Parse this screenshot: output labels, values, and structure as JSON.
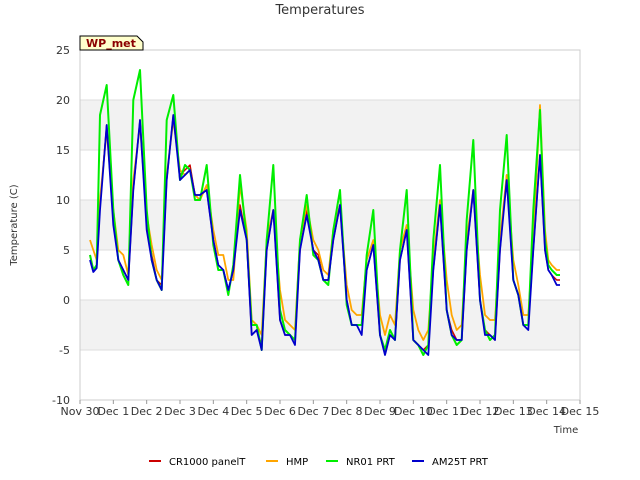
{
  "chart_data": {
    "type": "line",
    "title": "Temperatures",
    "xlabel": "Time",
    "ylabel": "Temperature (C)",
    "badge": "WP_met",
    "ylim": [
      -10,
      25
    ],
    "xlim": [
      0,
      15
    ],
    "yticks": [
      -10,
      -5,
      0,
      5,
      10,
      15,
      20,
      25
    ],
    "xticks": [
      {
        "pos": 0,
        "label": "Nov 30"
      },
      {
        "pos": 1,
        "label": "Dec 1"
      },
      {
        "pos": 2,
        "label": "Dec 2"
      },
      {
        "pos": 3,
        "label": "Dec 3"
      },
      {
        "pos": 4,
        "label": "Dec 4"
      },
      {
        "pos": 5,
        "label": "Dec 5"
      },
      {
        "pos": 6,
        "label": "Dec 6"
      },
      {
        "pos": 7,
        "label": "Dec 7"
      },
      {
        "pos": 8,
        "label": "Dec 8"
      },
      {
        "pos": 9,
        "label": "Dec 9"
      },
      {
        "pos": 10,
        "label": "Dec 10"
      },
      {
        "pos": 11,
        "label": "Dec 11"
      },
      {
        "pos": 12,
        "label": "Dec 12"
      },
      {
        "pos": 13,
        "label": "Dec 13"
      },
      {
        "pos": 14,
        "label": "Dec 14"
      },
      {
        "pos": 15,
        "label": "Dec 15"
      }
    ],
    "grid": true,
    "legend_position": "bottom",
    "x": [
      0.3,
      0.4,
      0.5,
      0.6,
      0.8,
      1.0,
      1.15,
      1.3,
      1.45,
      1.6,
      1.8,
      2.0,
      2.15,
      2.3,
      2.45,
      2.6,
      2.8,
      3.0,
      3.15,
      3.3,
      3.45,
      3.6,
      3.8,
      4.0,
      4.15,
      4.3,
      4.45,
      4.6,
      4.8,
      5.0,
      5.15,
      5.3,
      5.45,
      5.6,
      5.8,
      6.0,
      6.15,
      6.3,
      6.45,
      6.6,
      6.8,
      7.0,
      7.15,
      7.3,
      7.45,
      7.6,
      7.8,
      8.0,
      8.15,
      8.3,
      8.45,
      8.6,
      8.8,
      9.0,
      9.15,
      9.3,
      9.45,
      9.6,
      9.8,
      10.0,
      10.15,
      10.3,
      10.45,
      10.6,
      10.8,
      11.0,
      11.15,
      11.3,
      11.45,
      11.6,
      11.8,
      12.0,
      12.15,
      12.3,
      12.45,
      12.6,
      12.8,
      13.0,
      13.15,
      13.3,
      13.45,
      13.6,
      13.8,
      13.95,
      14.05,
      14.15,
      14.3,
      14.4
    ],
    "series": [
      {
        "name": "CR1000 panelT",
        "color": "#cc0000",
        "values": [
          4.5,
          3.0,
          3.5,
          9.5,
          17.5,
          8.0,
          4.0,
          3.0,
          2.0,
          11.0,
          18.0,
          7.5,
          4.5,
          2.0,
          1.5,
          12.0,
          18.5,
          12.5,
          13.0,
          13.5,
          10.5,
          10.5,
          11.0,
          6.0,
          3.5,
          3.0,
          1.0,
          3.0,
          9.5,
          6.0,
          -3.5,
          -3.0,
          -4.5,
          5.0,
          9.0,
          -2.0,
          -3.5,
          -3.5,
          -4.0,
          5.0,
          9.0,
          5.0,
          4.5,
          2.0,
          2.0,
          6.0,
          9.5,
          0.0,
          -2.5,
          -2.5,
          -2.5,
          3.0,
          5.5,
          -3.5,
          -5.0,
          -3.5,
          -4.0,
          4.0,
          7.0,
          -4.0,
          -4.5,
          -5.0,
          -4.5,
          3.0,
          9.5,
          -1.0,
          -3.0,
          -4.0,
          -4.0,
          5.0,
          11.0,
          0.0,
          -3.0,
          -3.5,
          -4.0,
          5.0,
          12.5,
          2.0,
          0.5,
          -2.5,
          -2.5,
          5.0,
          14.5,
          5.0,
          3.0,
          2.5,
          2.0,
          2.0
        ]
      },
      {
        "name": "HMP",
        "color": "#ffa500",
        "values": [
          6.0,
          5.0,
          4.0,
          10.0,
          17.0,
          9.0,
          5.0,
          4.5,
          2.5,
          12.0,
          17.5,
          8.5,
          5.5,
          3.0,
          2.0,
          12.5,
          18.0,
          13.0,
          12.5,
          13.0,
          10.5,
          10.0,
          11.5,
          7.0,
          4.5,
          4.5,
          2.0,
          2.0,
          11.5,
          7.0,
          -2.0,
          -2.5,
          -3.5,
          6.0,
          9.0,
          1.0,
          -2.0,
          -2.5,
          -3.0,
          6.0,
          9.5,
          6.0,
          5.0,
          3.0,
          2.5,
          7.0,
          9.5,
          1.5,
          -1.0,
          -1.5,
          -1.5,
          4.0,
          6.0,
          -1.5,
          -3.5,
          -1.5,
          -2.5,
          5.0,
          7.5,
          -1.0,
          -3.0,
          -4.0,
          -3.0,
          4.0,
          10.0,
          2.0,
          -1.5,
          -3.0,
          -2.5,
          6.0,
          11.0,
          2.5,
          -1.5,
          -2.0,
          -2.0,
          6.0,
          12.5,
          4.0,
          1.5,
          -1.5,
          -1.5,
          6.0,
          19.5,
          7.0,
          4.0,
          3.5,
          3.0,
          3.0
        ]
      },
      {
        "name": "NR01 PRT",
        "color": "#00ee00",
        "values": [
          4.5,
          3.0,
          3.5,
          18.5,
          21.5,
          9.0,
          4.0,
          2.5,
          1.5,
          20.0,
          23.0,
          9.0,
          4.0,
          2.0,
          1.0,
          18.0,
          20.5,
          12.0,
          13.5,
          13.0,
          10.0,
          10.0,
          13.5,
          5.5,
          3.0,
          3.0,
          0.5,
          3.5,
          12.5,
          6.0,
          -2.5,
          -2.5,
          -5.0,
          6.0,
          13.5,
          -1.0,
          -3.0,
          -3.5,
          -4.0,
          6.0,
          10.5,
          4.5,
          4.0,
          2.0,
          1.5,
          7.0,
          11.0,
          -0.5,
          -2.5,
          -2.5,
          -2.5,
          4.5,
          9.0,
          -3.5,
          -5.0,
          -3.0,
          -4.0,
          5.0,
          11.0,
          -4.0,
          -4.5,
          -5.5,
          -4.5,
          6.0,
          13.5,
          -1.0,
          -3.5,
          -4.5,
          -4.0,
          8.0,
          16.0,
          0.0,
          -3.0,
          -4.0,
          -3.5,
          9.0,
          16.5,
          2.0,
          0.5,
          -2.5,
          -2.5,
          9.0,
          19.0,
          6.0,
          3.5,
          3.0,
          2.5,
          2.5
        ]
      },
      {
        "name": "AM25T PRT",
        "color": "#0000cc",
        "values": [
          4.0,
          2.8,
          3.2,
          9.0,
          17.5,
          7.5,
          4.0,
          3.0,
          2.0,
          11.0,
          18.0,
          7.0,
          4.0,
          2.0,
          1.0,
          12.0,
          18.5,
          12.0,
          12.5,
          13.0,
          10.5,
          10.5,
          11.0,
          6.0,
          3.5,
          3.0,
          1.0,
          3.0,
          9.0,
          6.0,
          -3.5,
          -3.0,
          -5.0,
          5.0,
          9.0,
          -2.0,
          -3.5,
          -3.5,
          -4.5,
          5.0,
          8.5,
          5.0,
          4.0,
          2.0,
          2.0,
          6.0,
          9.5,
          0.0,
          -2.5,
          -2.5,
          -3.5,
          3.0,
          5.5,
          -3.5,
          -5.5,
          -3.5,
          -4.0,
          4.0,
          7.0,
          -4.0,
          -4.5,
          -5.0,
          -5.5,
          3.0,
          9.5,
          -1.0,
          -3.5,
          -4.0,
          -4.0,
          5.0,
          11.0,
          0.0,
          -3.5,
          -3.5,
          -4.0,
          5.0,
          12.0,
          2.0,
          0.5,
          -2.5,
          -3.0,
          5.0,
          14.5,
          5.0,
          3.0,
          2.5,
          1.5,
          1.5
        ]
      }
    ]
  }
}
